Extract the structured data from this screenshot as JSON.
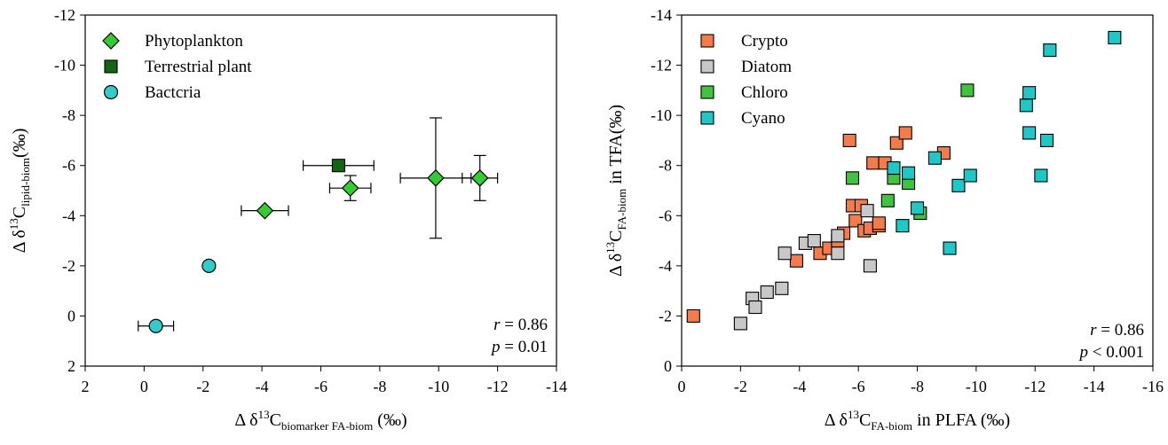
{
  "chart_data": [
    {
      "type": "scatter",
      "xlabel": {
        "prefix": "Δ δ",
        "sup": "13",
        "mid": "C",
        "sub": "biomarker FA-biom",
        "suffix": " (‰)"
      },
      "ylabel": {
        "prefix": "Δ δ",
        "sup": "13",
        "mid": "C",
        "sub": "lipid-biom",
        "suffix": "(‰)"
      },
      "xlim": [
        2,
        -14
      ],
      "ylim": [
        2,
        -12
      ],
      "xticks": [
        2,
        0,
        -2,
        -4,
        -6,
        -8,
        -10,
        -12,
        -14
      ],
      "yticks": [
        -12,
        -10,
        -8,
        -6,
        -4,
        -2,
        0,
        2
      ],
      "xtick_labels": [
        "2",
        "0",
        "-2",
        "-4",
        "-6",
        "-8",
        "-10",
        "-12",
        "-14"
      ],
      "ytick_labels": [
        "-12",
        "-10",
        "-8",
        "-6",
        "-4",
        "-2",
        "0",
        "2"
      ],
      "legend_position": "top-left",
      "series": [
        {
          "name": "Phytoplankton",
          "marker": "diamond",
          "color": "#33cc33",
          "points": [
            {
              "x": -4.1,
              "y": -4.2,
              "xerr": 0.8,
              "yerr": 0
            },
            {
              "x": -7.0,
              "y": -5.1,
              "xerr": 0.7,
              "yerr": 0.5
            },
            {
              "x": -9.9,
              "y": -5.5,
              "xerr": 1.2,
              "yerr": 2.4
            },
            {
              "x": -11.4,
              "y": -5.5,
              "xerr": 0.6,
              "yerr": 0.9
            }
          ]
        },
        {
          "name": "Terrestrial plant",
          "marker": "square",
          "color": "#116611",
          "points": [
            {
              "x": -6.6,
              "y": -6.0,
              "xerr": 1.2,
              "yerr": 0
            }
          ]
        },
        {
          "name": "Bactcria",
          "marker": "circle",
          "color": "#33cccc",
          "points": [
            {
              "x": -2.2,
              "y": -2.0,
              "xerr": 0,
              "yerr": 0
            },
            {
              "x": -0.4,
              "y": 0.4,
              "xerr": 0.6,
              "yerr": 0
            }
          ]
        }
      ],
      "stats": {
        "r_label": "r",
        "r_value": " = 0.86",
        "p_label": "p",
        "p_value": " = 0.01"
      }
    },
    {
      "type": "scatter",
      "xlabel": {
        "prefix": "Δ δ",
        "sup": "13",
        "mid": "C",
        "sub": "FA-biom",
        "suffix": " in PLFA (‰)"
      },
      "ylabel": {
        "prefix": "Δ δ",
        "sup": "13",
        "mid": "C",
        "sub": "FA-biom",
        "suffix": " in TFA(‰)"
      },
      "xlim": [
        0,
        -16
      ],
      "ylim": [
        0,
        -14
      ],
      "xticks": [
        0,
        -2,
        -4,
        -6,
        -8,
        -10,
        -12,
        -14,
        -16
      ],
      "yticks": [
        -14,
        -12,
        -10,
        -8,
        -6,
        -4,
        -2,
        0
      ],
      "xtick_labels": [
        "0",
        "-2",
        "-4",
        "-6",
        "-8",
        "-10",
        "-12",
        "-14",
        "-16"
      ],
      "ytick_labels": [
        "-14",
        "-12",
        "-10",
        "-8",
        "-6",
        "-4",
        "-2",
        "0"
      ],
      "legend_position": "top-left",
      "series": [
        {
          "name": "Crypto",
          "marker": "square",
          "color": "#f47b4b",
          "points": [
            [
              -0.4,
              -2.0
            ],
            [
              -3.9,
              -4.2
            ],
            [
              -4.7,
              -4.5
            ],
            [
              -5.0,
              -4.7
            ],
            [
              -5.3,
              -5.0
            ],
            [
              -5.5,
              -5.3
            ],
            [
              -5.8,
              -6.4
            ],
            [
              -5.9,
              -5.8
            ],
            [
              -6.1,
              -6.4
            ],
            [
              -6.2,
              -5.4
            ],
            [
              -6.4,
              -5.5
            ],
            [
              -6.7,
              -5.6
            ],
            [
              -6.7,
              -5.7
            ],
            [
              -6.5,
              -8.1
            ],
            [
              -6.9,
              -8.1
            ],
            [
              -5.7,
              -9.0
            ],
            [
              -7.3,
              -8.9
            ],
            [
              -7.6,
              -9.3
            ],
            [
              -8.9,
              -8.5
            ]
          ]
        },
        {
          "name": "Diatom",
          "marker": "square",
          "color": "#c8c8c8",
          "points": [
            [
              -2.0,
              -1.7
            ],
            [
              -2.4,
              -2.7
            ],
            [
              -2.5,
              -2.35
            ],
            [
              -2.9,
              -2.95
            ],
            [
              -3.4,
              -3.1
            ],
            [
              -3.5,
              -4.5
            ],
            [
              -4.2,
              -4.9
            ],
            [
              -4.5,
              -5.0
            ],
            [
              -5.3,
              -4.5
            ],
            [
              -5.3,
              -5.2
            ],
            [
              -6.4,
              -4.0
            ],
            [
              -6.3,
              -6.2
            ]
          ]
        },
        {
          "name": "Chloro",
          "marker": "square",
          "color": "#3fc43f",
          "points": [
            [
              -5.8,
              -7.5
            ],
            [
              -7.0,
              -6.6
            ],
            [
              -7.2,
              -7.5
            ],
            [
              -7.7,
              -7.3
            ],
            [
              -8.1,
              -6.1
            ],
            [
              -9.7,
              -11.0
            ]
          ]
        },
        {
          "name": "Cyano",
          "marker": "square",
          "color": "#1fc7c7",
          "points": [
            [
              -7.2,
              -7.9
            ],
            [
              -7.5,
              -5.6
            ],
            [
              -7.7,
              -7.7
            ],
            [
              -8.0,
              -6.3
            ],
            [
              -8.6,
              -8.3
            ],
            [
              -9.1,
              -4.7
            ],
            [
              -9.4,
              -7.2
            ],
            [
              -9.8,
              -7.6
            ],
            [
              -11.7,
              -10.4
            ],
            [
              -11.8,
              -10.9
            ],
            [
              -11.8,
              -9.3
            ],
            [
              -12.2,
              -7.6
            ],
            [
              -12.4,
              -9.0
            ],
            [
              -12.5,
              -12.6
            ],
            [
              -14.7,
              -13.1
            ]
          ]
        }
      ],
      "stats": {
        "r_label": "r",
        "r_value": " = 0.86",
        "p_label": "p",
        "p_value": " < 0.001"
      }
    }
  ]
}
